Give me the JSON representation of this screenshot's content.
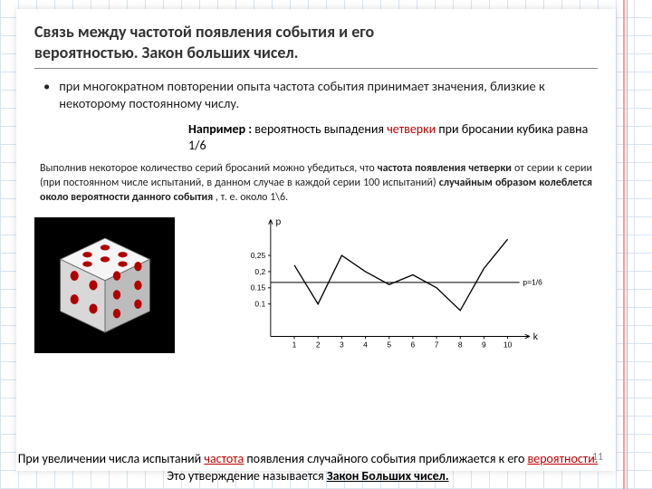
{
  "title_l1": "Связь между частотой появления события и его",
  "title_l2": "вероятностью.   Закон больших чисел.",
  "bullet": "при многократном  повторении опыта частота события принимает значения, близкие к некоторому постоянному числу.",
  "example_pre": "Например :",
  "example_mid": "  вероятность выпадения ",
  "example_red": "четверки",
  "example_post": " при бросании кубика равна 1/6",
  "para_1": "Выполнив некоторое количество серий бросаний   можно убедиться, что ",
  "para_b1": "частота появления четверки",
  "para_2": " от серии к серии (при постоянном числе испытаний, в данном случае в каждой серии 100 испытаний) ",
  "para_b2": "случайным образом колеблется около вероятности данного события ",
  "para_3": ", т. е. около 1\\6.",
  "conclusion_a": "При увеличении числа испытаний ",
  "conclusion_red1": "частота",
  "conclusion_b": " появления случайного события приближается к его ",
  "conclusion_red2": "вероятности.",
  "conclusion_c": "Это утверждение называется ",
  "conclusion_d": "Закон Больших чисел.",
  "pagenum": "11",
  "chart": {
    "type": "line",
    "ylabel": "p",
    "xlabel": "k",
    "ref_label": "p=1/6",
    "ref_value": 0.1667,
    "xlim": [
      0,
      10.5
    ],
    "ylim": [
      0,
      0.35
    ],
    "yticks": [
      0.1,
      0.15,
      0.2,
      0.25
    ],
    "ytick_labels": [
      "0.1",
      "0.15",
      "0,2",
      "0,25"
    ],
    "xticks": [
      1,
      2,
      3,
      4,
      5,
      6,
      7,
      8,
      9,
      10
    ],
    "values": [
      0.22,
      0.1,
      0.25,
      0.2,
      0.16,
      0.19,
      0.15,
      0.08,
      0.21,
      0.3
    ],
    "line_color": "#000000",
    "ref_color": "#000000",
    "axis_color": "#000000",
    "background": "#ffffff",
    "font_size": 9
  },
  "dice": {
    "face_colors": {
      "top": "#f5f5f5",
      "left": "#d8d8d8",
      "right": "#bcbcbc"
    },
    "pip_color": "#b00000",
    "edge_color": "#666666",
    "bg": "#000000"
  }
}
